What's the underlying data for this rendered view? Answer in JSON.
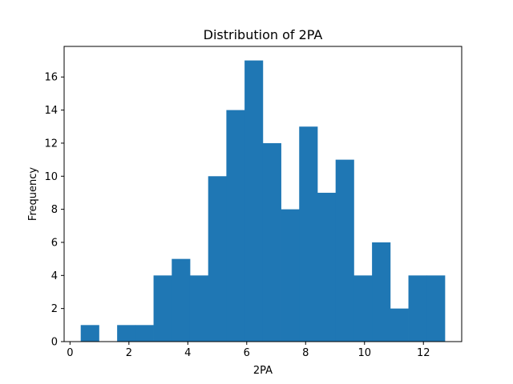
{
  "chart_data": {
    "type": "bar",
    "title": "Distribution of 2PA",
    "xlabel": "2PA",
    "ylabel": "Frequency",
    "xlim": [
      -0.2,
      13.3
    ],
    "ylim": [
      0,
      17.85
    ],
    "xticks": [
      0,
      2,
      4,
      6,
      8,
      10,
      12
    ],
    "yticks": [
      0,
      2,
      4,
      6,
      8,
      10,
      12,
      14,
      16
    ],
    "bin_edges": [
      0.3636,
      0.9818,
      1.6,
      2.2182,
      2.8364,
      3.4545,
      4.0727,
      4.6909,
      5.3091,
      5.9273,
      6.5455,
      7.1636,
      7.7818,
      8.4,
      9.0182,
      9.6364,
      10.2545,
      10.8727,
      11.4909,
      12.1091,
      12.7273
    ],
    "counts": [
      1,
      0,
      1,
      1,
      4,
      5,
      4,
      10,
      14,
      17,
      12,
      8,
      13,
      9,
      11,
      4,
      6,
      2,
      4,
      4
    ],
    "bar_color": "#1f77b4",
    "grid": false
  }
}
